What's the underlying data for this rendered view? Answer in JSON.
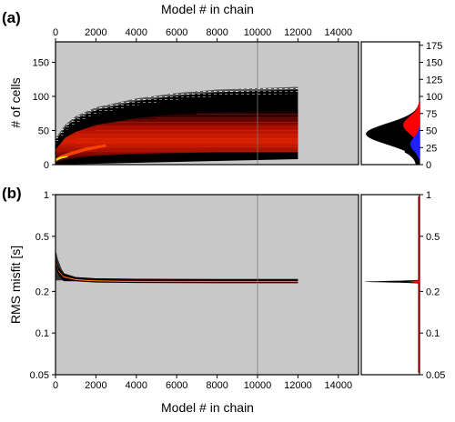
{
  "chart_data": [
    {
      "type": "heatmap",
      "panel_label": "(a)",
      "xlabel": "Model # in chain",
      "ylabel": "# of cells",
      "xlim": [
        0,
        15000
      ],
      "ylim": [
        0,
        180
      ],
      "x_ticks": [
        "0",
        "2000",
        "4000",
        "6000",
        "8000",
        "10000",
        "12000",
        "14000"
      ],
      "y_ticks": [
        "0",
        "50",
        "100",
        "150"
      ],
      "y_ticks_right": [
        "0",
        "25",
        "50",
        "75",
        "100",
        "125",
        "150",
        "175"
      ],
      "x_tick_values": [
        0,
        2000,
        4000,
        6000,
        8000,
        10000,
        12000,
        14000
      ],
      "y_tick_values": [
        0,
        50,
        100,
        150
      ],
      "y_right_tick_values": [
        0,
        25,
        50,
        75,
        100,
        125,
        150,
        175
      ],
      "data_extent_x": [
        0,
        12000
      ],
      "vertical_marker_x": 10000,
      "density_upper": [
        [
          0,
          35
        ],
        [
          500,
          55
        ],
        [
          1000,
          67
        ],
        [
          2000,
          80
        ],
        [
          4000,
          93
        ],
        [
          6000,
          101
        ],
        [
          8000,
          106
        ],
        [
          10000,
          108
        ],
        [
          12000,
          110
        ]
      ],
      "density_core_upper": [
        [
          0,
          22
        ],
        [
          500,
          40
        ],
        [
          1000,
          48
        ],
        [
          2000,
          58
        ],
        [
          4000,
          68
        ],
        [
          6000,
          74
        ],
        [
          8000,
          77
        ],
        [
          10000,
          79
        ],
        [
          12000,
          80
        ]
      ],
      "density_core_lower": [
        [
          0,
          3
        ],
        [
          500,
          7
        ],
        [
          1000,
          10
        ],
        [
          2000,
          13
        ],
        [
          4000,
          16
        ],
        [
          6000,
          17
        ],
        [
          8000,
          18
        ],
        [
          10000,
          18
        ],
        [
          12000,
          18
        ]
      ],
      "marginal_histogram": {
        "red_range": [
          20,
          95
        ],
        "blue_range": [
          8,
          60
        ],
        "peak": 45
      },
      "colors": {
        "background": "#c8c8c8",
        "low": "#000000",
        "mid": "#cc1100",
        "high": "#ffe600",
        "marginal_red": "#ff0000",
        "marginal_blue": "#1f1fff"
      }
    },
    {
      "type": "heatmap",
      "panel_label": "(b)",
      "xlabel": "Model # in chain",
      "ylabel": "RMS misfit [s]",
      "xscale": "linear",
      "yscale": "log",
      "xlim": [
        0,
        15000
      ],
      "ylim": [
        0.05,
        1
      ],
      "x_ticks": [
        "0",
        "2000",
        "4000",
        "6000",
        "8000",
        "10000",
        "12000",
        "14000"
      ],
      "y_ticks": [
        "0.05",
        "0.1",
        "0.2",
        "0.5",
        "1"
      ],
      "x_tick_values": [
        0,
        2000,
        4000,
        6000,
        8000,
        10000,
        12000,
        14000
      ],
      "y_tick_values": [
        0.05,
        0.1,
        0.2,
        0.5,
        1
      ],
      "data_extent_x": [
        0,
        12000
      ],
      "vertical_marker_x": 10000,
      "misfit_band": [
        [
          0,
          0.33
        ],
        [
          150,
          0.28
        ],
        [
          400,
          0.255
        ],
        [
          1000,
          0.243
        ],
        [
          2000,
          0.238
        ],
        [
          4000,
          0.236
        ],
        [
          8000,
          0.235
        ],
        [
          12000,
          0.235
        ]
      ],
      "marginal_peak": 0.235,
      "colors": {
        "background": "#c8c8c8",
        "low": "#000000",
        "mid": "#cc1100",
        "high": "#ffe600"
      }
    }
  ]
}
